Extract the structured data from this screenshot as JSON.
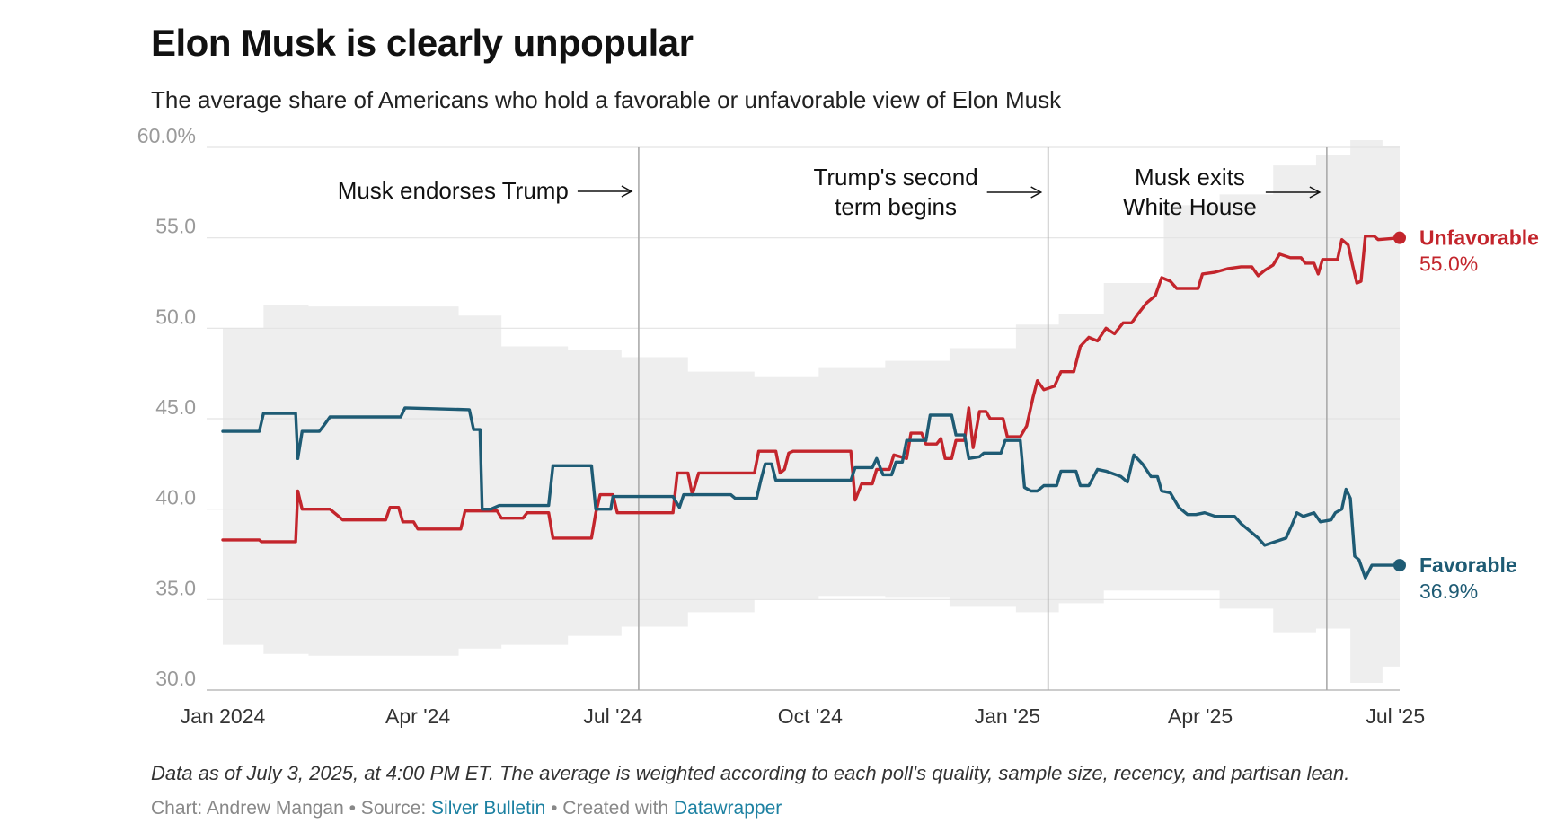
{
  "header": {
    "title": "Elon Musk is clearly unpopular",
    "subtitle": "The average share of Americans who hold a favorable or unfavorable view of Elon Musk"
  },
  "footer": {
    "notes": "Data as of July 3, 2025, at 4:00 PM ET. The average is weighted according to each poll's quality, sample size, recency, and partisan lean.",
    "credit_prefix": "Chart: Andrew Mangan • Source: ",
    "source_link": "Silver Bulletin",
    "credit_middle": " • Created with ",
    "tool_link": "Datawrapper"
  },
  "chart_data": {
    "type": "line",
    "title": "Elon Musk is clearly unpopular",
    "subtitle": "The average share of Americans who hold a favorable or unfavorable view of Elon Musk",
    "ylim": [
      30,
      60
    ],
    "y_ticks": [
      {
        "value": 60,
        "label": "60.0%"
      },
      {
        "value": 55,
        "label": "55.0"
      },
      {
        "value": 50,
        "label": "50.0"
      },
      {
        "value": 45,
        "label": "45.0"
      },
      {
        "value": 40,
        "label": "40.0"
      },
      {
        "value": 35,
        "label": "35.0"
      },
      {
        "value": 30,
        "label": "30.0"
      }
    ],
    "xlim": [
      "2024-01-01",
      "2025-07-03"
    ],
    "x_ticks": [
      {
        "date": "2024-01-01",
        "label": "Jan 2024"
      },
      {
        "date": "2024-04-01",
        "label": "Apr '24"
      },
      {
        "date": "2024-07-01",
        "label": "Jul '24"
      },
      {
        "date": "2024-10-01",
        "label": "Oct '24"
      },
      {
        "date": "2025-01-01",
        "label": "Jan '25"
      },
      {
        "date": "2025-04-01",
        "label": "Apr '25"
      },
      {
        "date": "2025-07-01",
        "label": "Jul '25"
      }
    ],
    "grid": true,
    "events": [
      {
        "date": "2024-07-13",
        "label_lines": [
          "Musk endorses Trump"
        ]
      },
      {
        "date": "2025-01-20",
        "label_lines": [
          "Trump's second",
          "term begins"
        ]
      },
      {
        "date": "2025-05-30",
        "label_lines": [
          "Musk exits",
          "White House"
        ]
      }
    ],
    "series": [
      {
        "name": "Unfavorable",
        "final_label": "55.0%",
        "color": "#c3252c",
        "points": [
          [
            "2024-01-01",
            38.3
          ],
          [
            "2024-01-18",
            38.3
          ],
          [
            "2024-01-19",
            38.2
          ],
          [
            "2024-02-04",
            38.2
          ],
          [
            "2024-02-05",
            41.0
          ],
          [
            "2024-02-07",
            40.0
          ],
          [
            "2024-02-20",
            40.0
          ],
          [
            "2024-02-23",
            39.7
          ],
          [
            "2024-02-26",
            39.4
          ],
          [
            "2024-03-17",
            39.4
          ],
          [
            "2024-03-19",
            40.1
          ],
          [
            "2024-03-23",
            40.1
          ],
          [
            "2024-03-25",
            39.3
          ],
          [
            "2024-03-30",
            39.3
          ],
          [
            "2024-04-01",
            38.9
          ],
          [
            "2024-04-21",
            38.9
          ],
          [
            "2024-04-23",
            39.9
          ],
          [
            "2024-05-08",
            39.9
          ],
          [
            "2024-05-10",
            39.5
          ],
          [
            "2024-05-20",
            39.5
          ],
          [
            "2024-05-22",
            39.8
          ],
          [
            "2024-06-01",
            39.8
          ],
          [
            "2024-06-03",
            38.4
          ],
          [
            "2024-06-21",
            38.4
          ],
          [
            "2024-06-23",
            39.8
          ],
          [
            "2024-06-25",
            40.8
          ],
          [
            "2024-07-01",
            40.8
          ],
          [
            "2024-07-03",
            39.8
          ],
          [
            "2024-07-29",
            39.8
          ],
          [
            "2024-07-31",
            42.0
          ],
          [
            "2024-08-05",
            42.0
          ],
          [
            "2024-08-07",
            40.8
          ],
          [
            "2024-08-10",
            42.0
          ],
          [
            "2024-09-05",
            42.0
          ],
          [
            "2024-09-07",
            43.2
          ],
          [
            "2024-09-15",
            43.2
          ],
          [
            "2024-09-17",
            42.0
          ],
          [
            "2024-09-19",
            42.2
          ],
          [
            "2024-09-21",
            43.1
          ],
          [
            "2024-09-23",
            43.2
          ],
          [
            "2024-10-20",
            43.2
          ],
          [
            "2024-10-22",
            40.5
          ],
          [
            "2024-10-25",
            41.4
          ],
          [
            "2024-10-30",
            41.4
          ],
          [
            "2024-11-01",
            42.2
          ],
          [
            "2024-11-07",
            42.2
          ],
          [
            "2024-11-09",
            43.0
          ],
          [
            "2024-11-15",
            42.8
          ],
          [
            "2024-11-17",
            44.2
          ],
          [
            "2024-11-22",
            44.2
          ],
          [
            "2024-11-24",
            43.6
          ],
          [
            "2024-11-29",
            43.6
          ],
          [
            "2024-12-01",
            43.9
          ],
          [
            "2024-12-03",
            42.8
          ],
          [
            "2024-12-06",
            42.8
          ],
          [
            "2024-12-08",
            43.8
          ],
          [
            "2024-12-12",
            43.8
          ],
          [
            "2024-12-14",
            45.6
          ],
          [
            "2024-12-16",
            43.4
          ],
          [
            "2024-12-19",
            45.4
          ],
          [
            "2024-12-22",
            45.4
          ],
          [
            "2024-12-24",
            45.0
          ],
          [
            "2024-12-30",
            45.0
          ],
          [
            "2025-01-01",
            44.0
          ],
          [
            "2025-01-07",
            44.0
          ],
          [
            "2025-01-10",
            44.6
          ],
          [
            "2025-01-13",
            46.2
          ],
          [
            "2025-01-15",
            47.1
          ],
          [
            "2025-01-18",
            46.6
          ],
          [
            "2025-01-23",
            46.8
          ],
          [
            "2025-01-26",
            47.6
          ],
          [
            "2025-02-01",
            47.6
          ],
          [
            "2025-02-04",
            49.0
          ],
          [
            "2025-02-08",
            49.5
          ],
          [
            "2025-02-12",
            49.3
          ],
          [
            "2025-02-16",
            50.0
          ],
          [
            "2025-02-20",
            49.7
          ],
          [
            "2025-02-24",
            50.3
          ],
          [
            "2025-02-28",
            50.3
          ],
          [
            "2025-03-03",
            50.8
          ],
          [
            "2025-03-07",
            51.4
          ],
          [
            "2025-03-11",
            51.8
          ],
          [
            "2025-03-14",
            52.8
          ],
          [
            "2025-03-18",
            52.6
          ],
          [
            "2025-03-21",
            52.2
          ],
          [
            "2025-03-31",
            52.2
          ],
          [
            "2025-04-02",
            53.0
          ],
          [
            "2025-04-08",
            53.1
          ],
          [
            "2025-04-14",
            53.3
          ],
          [
            "2025-04-20",
            53.4
          ],
          [
            "2025-04-25",
            53.4
          ],
          [
            "2025-04-28",
            52.9
          ],
          [
            "2025-05-01",
            53.2
          ],
          [
            "2025-05-05",
            53.5
          ],
          [
            "2025-05-08",
            54.1
          ],
          [
            "2025-05-13",
            53.9
          ],
          [
            "2025-05-18",
            53.9
          ],
          [
            "2025-05-20",
            53.6
          ],
          [
            "2025-05-24",
            53.6
          ],
          [
            "2025-05-26",
            53.0
          ],
          [
            "2025-05-28",
            53.8
          ],
          [
            "2025-06-04",
            53.8
          ],
          [
            "2025-06-06",
            54.9
          ],
          [
            "2025-06-09",
            54.6
          ],
          [
            "2025-06-11",
            53.5
          ],
          [
            "2025-06-13",
            52.5
          ],
          [
            "2025-06-15",
            52.6
          ],
          [
            "2025-06-17",
            55.1
          ],
          [
            "2025-06-21",
            55.1
          ],
          [
            "2025-06-23",
            54.9
          ],
          [
            "2025-07-03",
            55.0
          ]
        ]
      },
      {
        "name": "Favorable",
        "final_label": "36.9%",
        "color": "#1e5b74",
        "points": [
          [
            "2024-01-01",
            44.3
          ],
          [
            "2024-01-18",
            44.3
          ],
          [
            "2024-01-20",
            45.3
          ],
          [
            "2024-02-04",
            45.3
          ],
          [
            "2024-02-05",
            42.8
          ],
          [
            "2024-02-07",
            44.3
          ],
          [
            "2024-02-15",
            44.3
          ],
          [
            "2024-02-17",
            44.6
          ],
          [
            "2024-02-20",
            45.1
          ],
          [
            "2024-03-24",
            45.1
          ],
          [
            "2024-03-26",
            45.6
          ],
          [
            "2024-04-25",
            45.5
          ],
          [
            "2024-04-27",
            44.4
          ],
          [
            "2024-04-30",
            44.4
          ],
          [
            "2024-05-01",
            40.0
          ],
          [
            "2024-05-05",
            40.0
          ],
          [
            "2024-05-09",
            40.2
          ],
          [
            "2024-06-01",
            40.2
          ],
          [
            "2024-06-03",
            42.4
          ],
          [
            "2024-06-21",
            42.4
          ],
          [
            "2024-06-23",
            40.0
          ],
          [
            "2024-06-30",
            40.0
          ],
          [
            "2024-07-01",
            40.7
          ],
          [
            "2024-07-29",
            40.7
          ],
          [
            "2024-08-01",
            40.1
          ],
          [
            "2024-08-03",
            40.8
          ],
          [
            "2024-08-25",
            40.8
          ],
          [
            "2024-08-27",
            40.6
          ],
          [
            "2024-09-06",
            40.6
          ],
          [
            "2024-09-08",
            41.6
          ],
          [
            "2024-09-10",
            42.5
          ],
          [
            "2024-09-13",
            42.5
          ],
          [
            "2024-09-15",
            41.6
          ],
          [
            "2024-10-20",
            41.6
          ],
          [
            "2024-10-22",
            42.3
          ],
          [
            "2024-10-30",
            42.3
          ],
          [
            "2024-11-01",
            42.8
          ],
          [
            "2024-11-04",
            41.9
          ],
          [
            "2024-11-08",
            41.9
          ],
          [
            "2024-11-10",
            42.6
          ],
          [
            "2024-11-13",
            42.6
          ],
          [
            "2024-11-15",
            43.8
          ],
          [
            "2024-11-24",
            43.8
          ],
          [
            "2024-11-26",
            45.2
          ],
          [
            "2024-12-06",
            45.2
          ],
          [
            "2024-12-08",
            44.1
          ],
          [
            "2024-12-12",
            44.1
          ],
          [
            "2024-12-14",
            42.8
          ],
          [
            "2024-12-19",
            42.9
          ],
          [
            "2024-12-21",
            43.1
          ],
          [
            "2024-12-29",
            43.1
          ],
          [
            "2024-12-31",
            43.8
          ],
          [
            "2025-01-07",
            43.8
          ],
          [
            "2025-01-09",
            41.2
          ],
          [
            "2025-01-12",
            41.0
          ],
          [
            "2025-01-15",
            41.0
          ],
          [
            "2025-01-18",
            41.3
          ],
          [
            "2025-01-24",
            41.3
          ],
          [
            "2025-01-26",
            42.1
          ],
          [
            "2025-02-02",
            42.1
          ],
          [
            "2025-02-04",
            41.3
          ],
          [
            "2025-02-08",
            41.3
          ],
          [
            "2025-02-12",
            42.2
          ],
          [
            "2025-02-16",
            42.1
          ],
          [
            "2025-02-23",
            41.8
          ],
          [
            "2025-02-26",
            41.5
          ],
          [
            "2025-03-01",
            43.0
          ],
          [
            "2025-03-05",
            42.5
          ],
          [
            "2025-03-09",
            41.8
          ],
          [
            "2025-03-12",
            41.8
          ],
          [
            "2025-03-14",
            41.0
          ],
          [
            "2025-03-18",
            40.9
          ],
          [
            "2025-03-22",
            40.1
          ],
          [
            "2025-03-26",
            39.7
          ],
          [
            "2025-03-30",
            39.7
          ],
          [
            "2025-04-03",
            39.8
          ],
          [
            "2025-04-08",
            39.6
          ],
          [
            "2025-04-13",
            39.6
          ],
          [
            "2025-04-17",
            39.6
          ],
          [
            "2025-04-20",
            39.2
          ],
          [
            "2025-04-24",
            38.8
          ],
          [
            "2025-04-28",
            38.4
          ],
          [
            "2025-05-01",
            38.0
          ],
          [
            "2025-05-06",
            38.2
          ],
          [
            "2025-05-11",
            38.4
          ],
          [
            "2025-05-14",
            39.2
          ],
          [
            "2025-05-16",
            39.8
          ],
          [
            "2025-05-19",
            39.6
          ],
          [
            "2025-05-24",
            39.8
          ],
          [
            "2025-05-27",
            39.3
          ],
          [
            "2025-06-01",
            39.4
          ],
          [
            "2025-06-03",
            39.8
          ],
          [
            "2025-06-06",
            40.0
          ],
          [
            "2025-06-08",
            41.1
          ],
          [
            "2025-06-10",
            40.6
          ],
          [
            "2025-06-12",
            37.4
          ],
          [
            "2025-06-14",
            37.2
          ],
          [
            "2025-06-17",
            36.2
          ],
          [
            "2025-06-20",
            36.9
          ],
          [
            "2025-06-23",
            36.9
          ],
          [
            "2025-07-03",
            36.9
          ]
        ]
      }
    ],
    "uncertainty_band": [
      [
        "2024-01-01",
        32.5,
        50.0
      ],
      [
        "2024-01-20",
        32.0,
        51.3
      ],
      [
        "2024-02-10",
        31.9,
        51.2
      ],
      [
        "2024-03-15",
        31.9,
        51.2
      ],
      [
        "2024-04-20",
        32.3,
        50.7
      ],
      [
        "2024-05-10",
        32.5,
        49.0
      ],
      [
        "2024-06-10",
        33.0,
        48.8
      ],
      [
        "2024-07-05",
        33.5,
        48.4
      ],
      [
        "2024-08-05",
        34.3,
        47.6
      ],
      [
        "2024-09-05",
        35.0,
        47.3
      ],
      [
        "2024-10-05",
        35.2,
        47.8
      ],
      [
        "2024-11-05",
        35.1,
        48.2
      ],
      [
        "2024-12-05",
        34.6,
        48.9
      ],
      [
        "2025-01-05",
        34.3,
        50.2
      ],
      [
        "2025-01-25",
        34.8,
        50.8
      ],
      [
        "2025-02-15",
        35.5,
        52.5
      ],
      [
        "2025-03-15",
        35.5,
        56.8
      ],
      [
        "2025-04-10",
        34.5,
        57.4
      ],
      [
        "2025-05-05",
        33.2,
        59.0
      ],
      [
        "2025-05-25",
        33.4,
        59.6
      ],
      [
        "2025-06-10",
        30.4,
        60.4
      ],
      [
        "2025-06-25",
        31.3,
        60.1
      ],
      [
        "2025-07-03",
        31.5,
        60.1
      ]
    ]
  }
}
